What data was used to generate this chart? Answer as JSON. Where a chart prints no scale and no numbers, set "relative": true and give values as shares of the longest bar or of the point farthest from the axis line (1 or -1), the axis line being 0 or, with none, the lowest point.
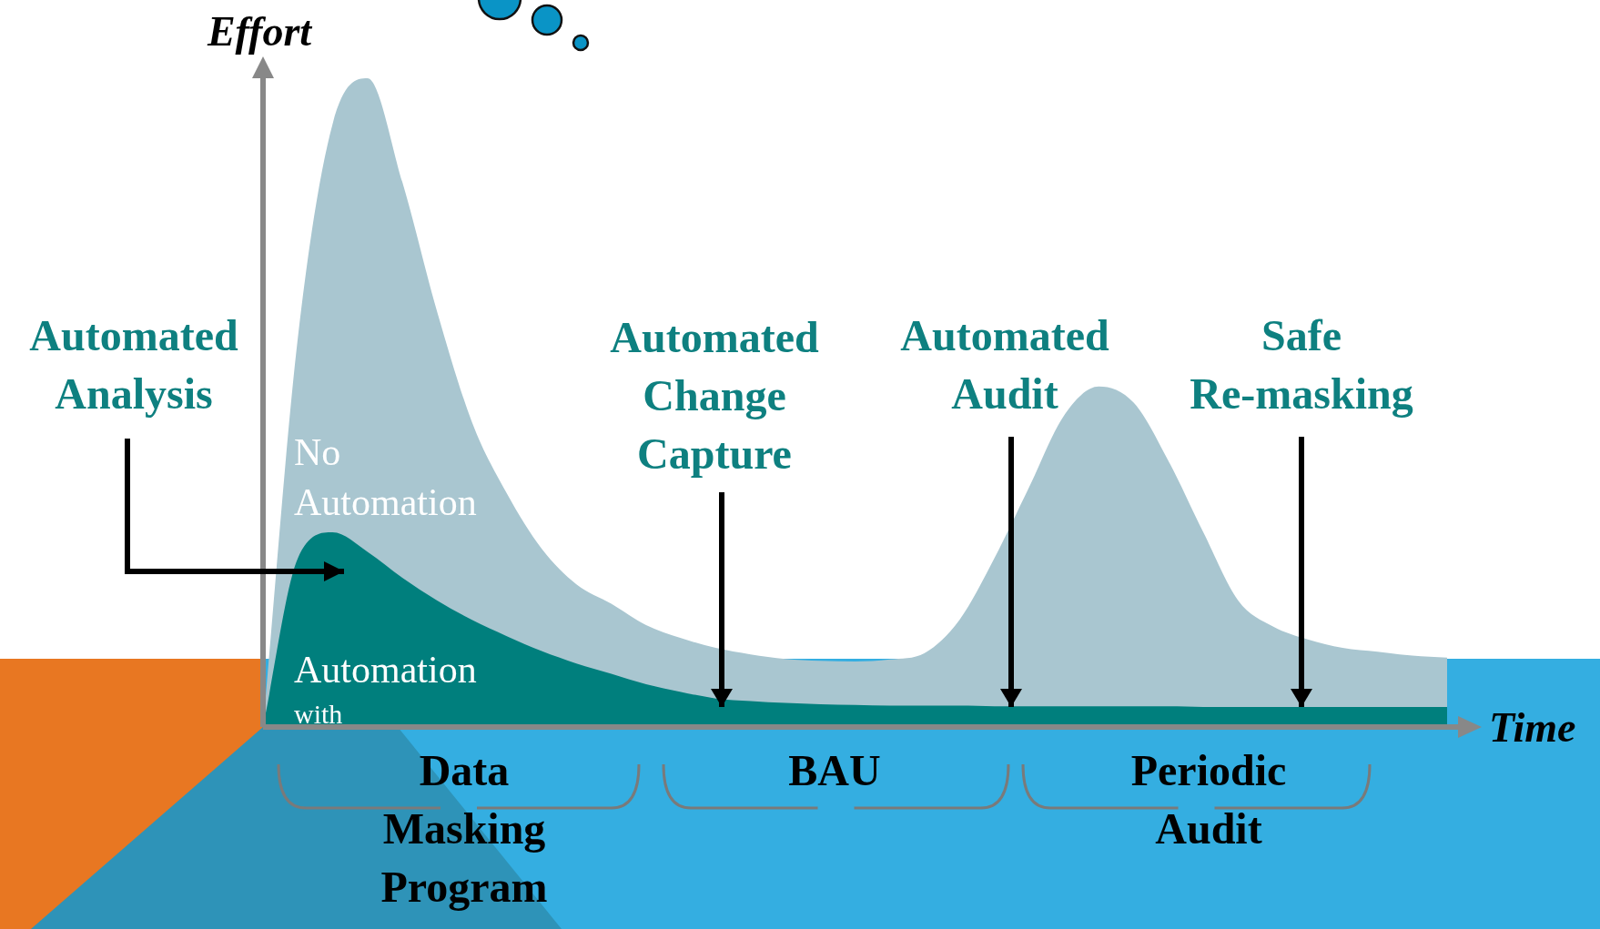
{
  "chart_data": {
    "type": "area",
    "relative": true,
    "xlabel": "Time",
    "ylabel": "Effort",
    "categories": [
      null,
      null,
      null,
      null,
      null,
      null,
      null,
      null,
      null,
      null,
      null,
      null,
      null,
      null,
      null,
      null,
      null,
      null,
      null,
      null,
      null,
      null,
      null,
      null,
      null,
      null,
      null,
      null,
      null,
      null,
      null,
      null,
      null,
      null,
      null
    ],
    "series": [
      {
        "name": "No Automation",
        "color": "#a9c6d0",
        "values": [
          0,
          0.6,
          0.93,
          1,
          0.84,
          0.64,
          0.47,
          0.36,
          0.275,
          0.22,
          0.19,
          0.157,
          0.137,
          0.122,
          0.112,
          0.105,
          0.102,
          0.101,
          0.104,
          0.114,
          0.165,
          0.26,
          0.37,
          0.48,
          0.525,
          0.5,
          0.41,
          0.3,
          0.195,
          0.155,
          0.135,
          0.122,
          0.116,
          0.11,
          0.107
        ]
      },
      {
        "name": "Automation with",
        "color": "#007f7d",
        "values": [
          0,
          0.26,
          0.3,
          0.27,
          0.23,
          0.195,
          0.165,
          0.14,
          0.117,
          0.098,
          0.082,
          0.066,
          0.054,
          0.044,
          0.04,
          0.037,
          0.035,
          0.034,
          0.033,
          0.033,
          0.033,
          0.032,
          0.032,
          0.032,
          0.032,
          0.032,
          0.032,
          0.031,
          0.031,
          0.031,
          0.031,
          0.031,
          0.031,
          0.031,
          0.031
        ]
      }
    ],
    "annotations": [
      "Automated Analysis",
      "Automated Change Capture",
      "Automated Audit",
      "Safe Re-masking",
      "Data Masking Program",
      "BAU",
      "Periodic Audit"
    ],
    "legend": false
  }
}
